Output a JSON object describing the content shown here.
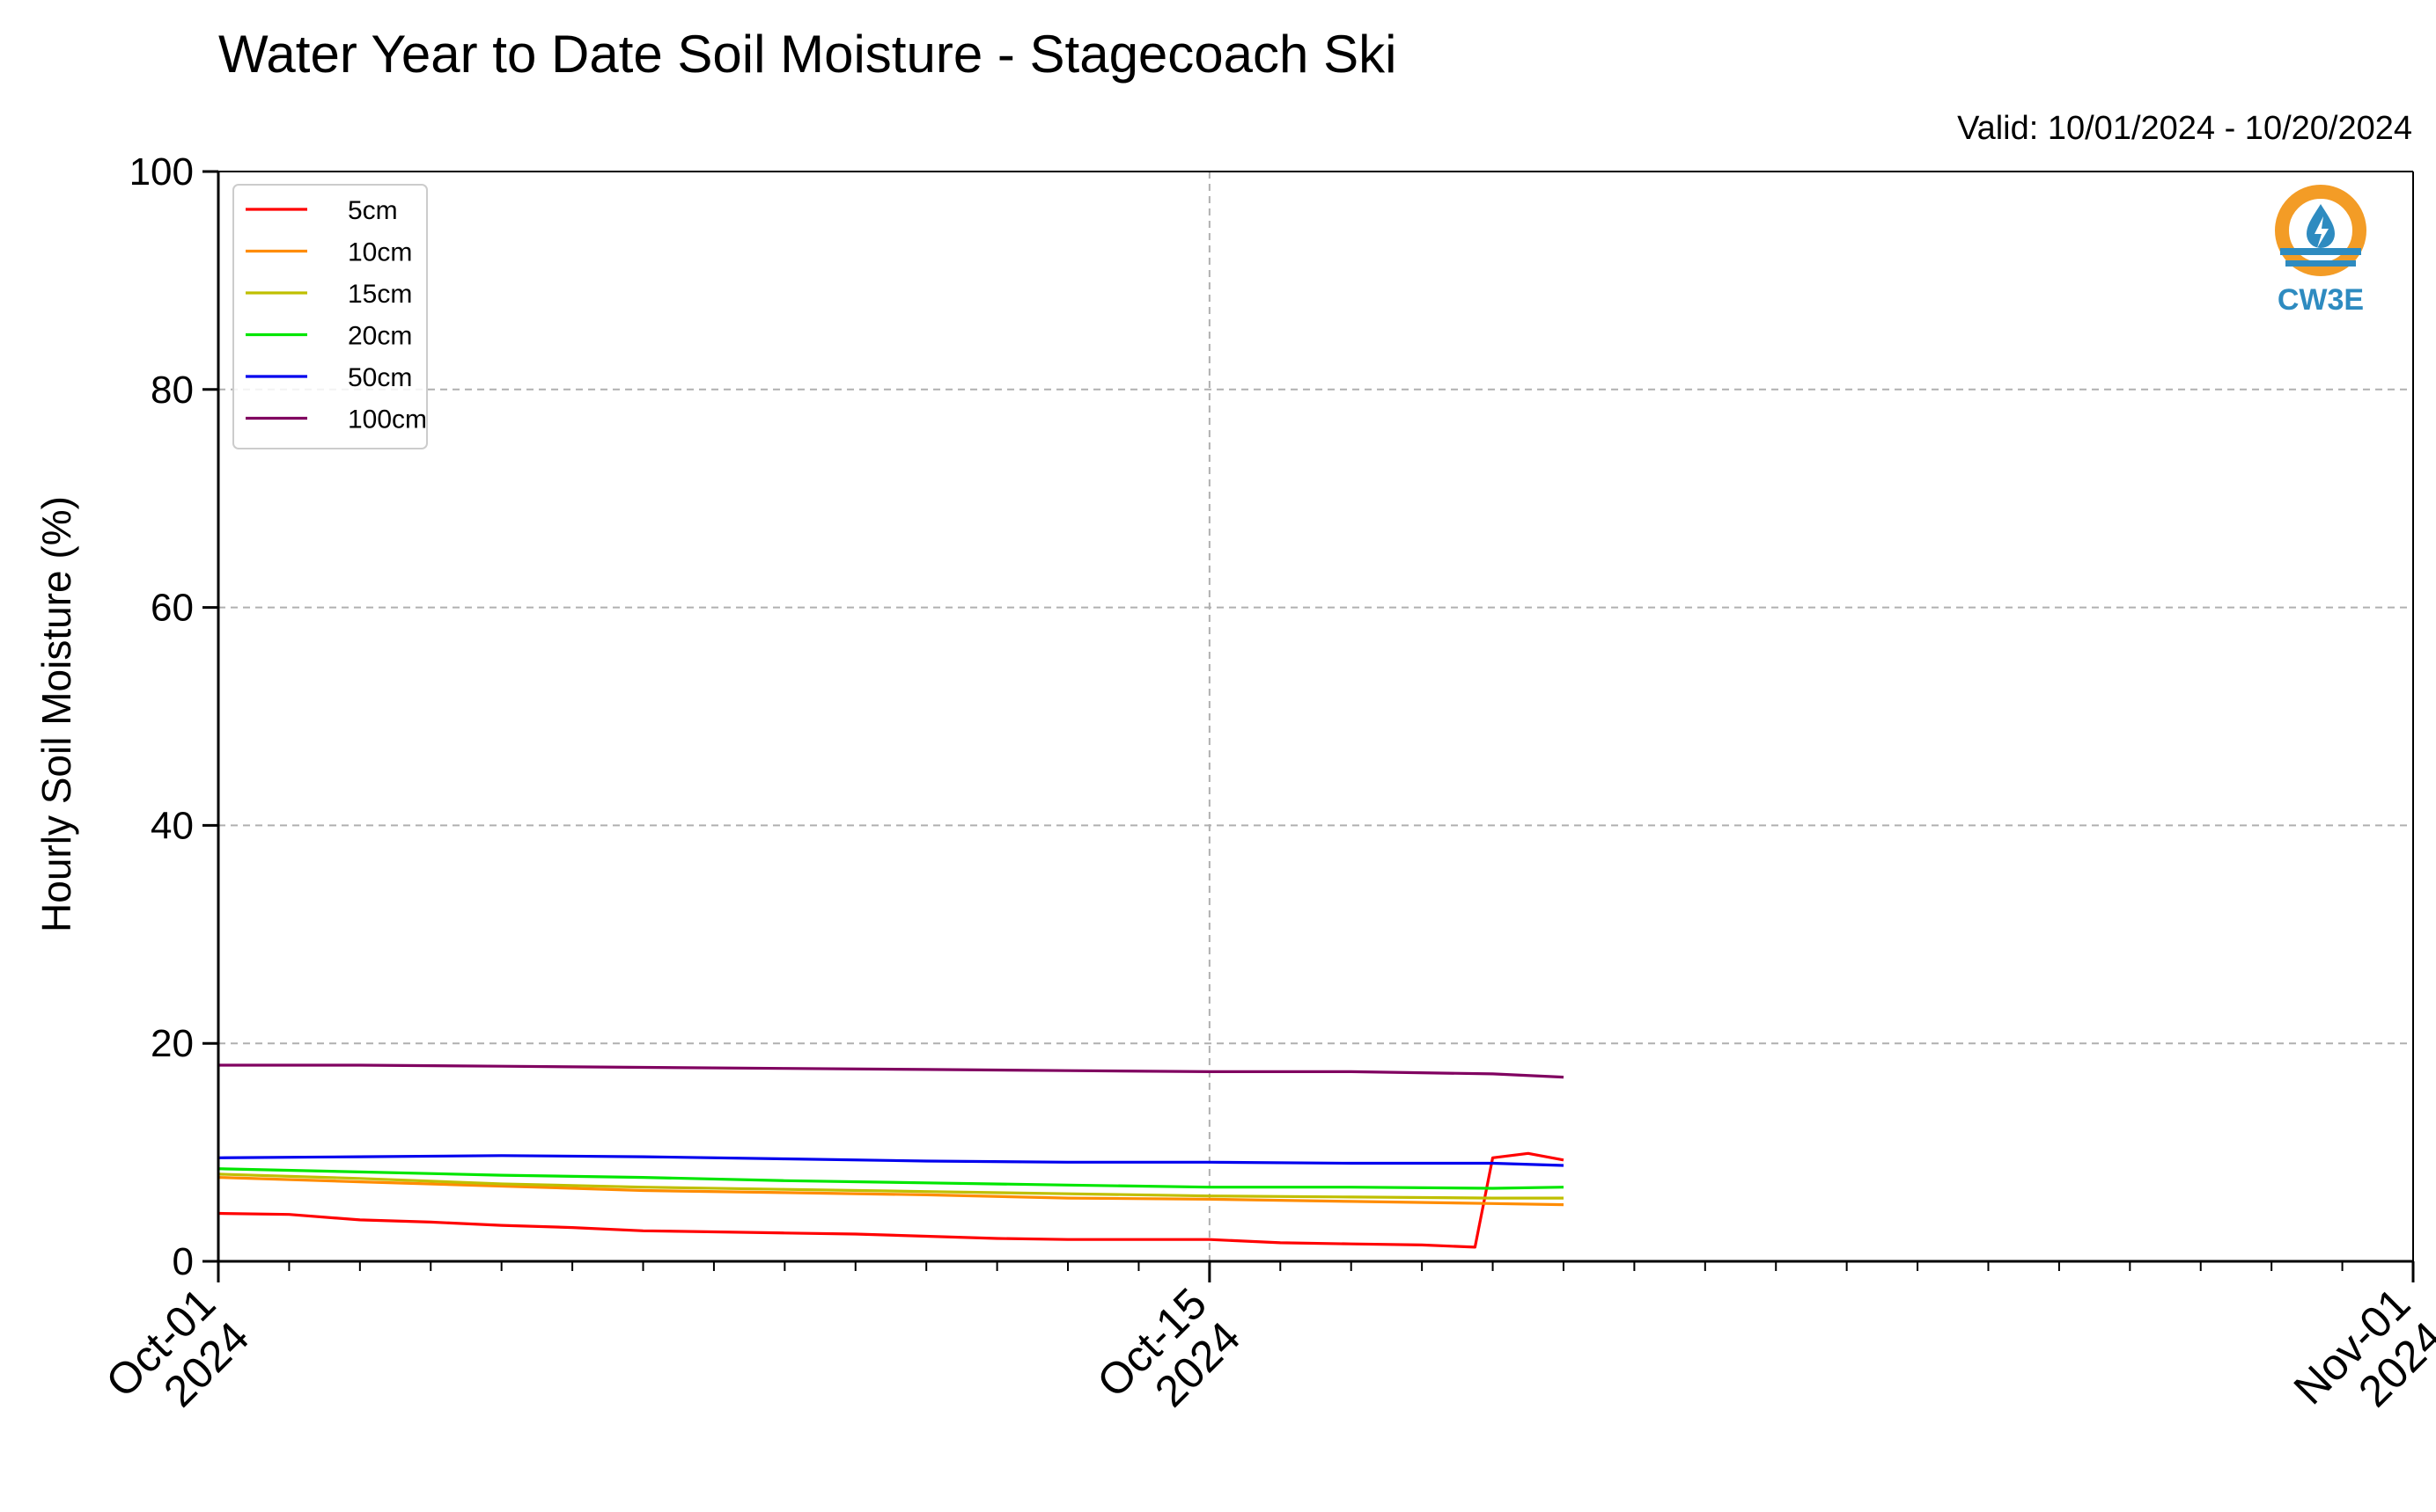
{
  "chart_data": {
    "type": "line",
    "title": "Water Year to Date Soil Moisture - Stagecoach Ski",
    "subtitle": "Valid: 10/01/2024 - 10/20/2024",
    "xlabel": "",
    "ylabel": "Hourly Soil Moisture (%)",
    "xlim": [
      "2024-10-01",
      "2024-11-01"
    ],
    "ylim": [
      0,
      100
    ],
    "y_ticks": [
      0,
      20,
      40,
      60,
      80,
      100
    ],
    "x_tick_labels": [
      {
        "date": "2024-10-01",
        "line1": "Oct-01",
        "line2": "2024"
      },
      {
        "date": "2024-10-15",
        "line1": "Oct-15",
        "line2": "2024"
      },
      {
        "date": "2024-11-01",
        "line1": "Nov-01",
        "line2": "2024"
      }
    ],
    "grid": true,
    "legend_position": "top-left",
    "series": [
      {
        "name": "5cm",
        "color": "#ff0000",
        "x": [
          "2024-10-01",
          "2024-10-02",
          "2024-10-03",
          "2024-10-04",
          "2024-10-05",
          "2024-10-06",
          "2024-10-07",
          "2024-10-08",
          "2024-10-09",
          "2024-10-10",
          "2024-10-11",
          "2024-10-12",
          "2024-10-13",
          "2024-10-14",
          "2024-10-15",
          "2024-10-16",
          "2024-10-17",
          "2024-10-18",
          "2024-10-18T18:00",
          "2024-10-19",
          "2024-10-19T12:00",
          "2024-10-20"
        ],
        "y": [
          4.4,
          4.3,
          3.8,
          3.6,
          3.3,
          3.1,
          2.8,
          2.7,
          2.6,
          2.5,
          2.3,
          2.1,
          2.0,
          2.0,
          2.0,
          1.7,
          1.6,
          1.5,
          1.3,
          9.5,
          9.9,
          9.3
        ]
      },
      {
        "name": "10cm",
        "color": "#ff8c00",
        "x": [
          "2024-10-01",
          "2024-10-03",
          "2024-10-05",
          "2024-10-07",
          "2024-10-09",
          "2024-10-11",
          "2024-10-13",
          "2024-10-15",
          "2024-10-17",
          "2024-10-19",
          "2024-10-20"
        ],
        "y": [
          7.7,
          7.3,
          6.9,
          6.5,
          6.3,
          6.1,
          5.8,
          5.7,
          5.5,
          5.3,
          5.2
        ]
      },
      {
        "name": "15cm",
        "color": "#bfbf00",
        "x": [
          "2024-10-01",
          "2024-10-03",
          "2024-10-05",
          "2024-10-07",
          "2024-10-09",
          "2024-10-11",
          "2024-10-13",
          "2024-10-15",
          "2024-10-17",
          "2024-10-19",
          "2024-10-20"
        ],
        "y": [
          8.0,
          7.6,
          7.1,
          6.8,
          6.6,
          6.4,
          6.2,
          6.0,
          5.9,
          5.8,
          5.8
        ]
      },
      {
        "name": "20cm",
        "color": "#00e600",
        "x": [
          "2024-10-01",
          "2024-10-03",
          "2024-10-05",
          "2024-10-07",
          "2024-10-09",
          "2024-10-11",
          "2024-10-13",
          "2024-10-15",
          "2024-10-17",
          "2024-10-19",
          "2024-10-20"
        ],
        "y": [
          8.5,
          8.2,
          7.9,
          7.7,
          7.4,
          7.2,
          7.0,
          6.8,
          6.8,
          6.7,
          6.8
        ]
      },
      {
        "name": "50cm",
        "color": "#0000ee",
        "x": [
          "2024-10-01",
          "2024-10-03",
          "2024-10-05",
          "2024-10-07",
          "2024-10-09",
          "2024-10-11",
          "2024-10-13",
          "2024-10-15",
          "2024-10-17",
          "2024-10-19",
          "2024-10-20"
        ],
        "y": [
          9.5,
          9.6,
          9.7,
          9.6,
          9.4,
          9.2,
          9.1,
          9.1,
          9.0,
          9.0,
          8.8
        ]
      },
      {
        "name": "100cm",
        "color": "#800060",
        "x": [
          "2024-10-01",
          "2024-10-03",
          "2024-10-05",
          "2024-10-07",
          "2024-10-09",
          "2024-10-11",
          "2024-10-13",
          "2024-10-15",
          "2024-10-17",
          "2024-10-19",
          "2024-10-20"
        ],
        "y": [
          18.0,
          18.0,
          17.9,
          17.8,
          17.7,
          17.6,
          17.5,
          17.4,
          17.4,
          17.2,
          16.9
        ]
      }
    ]
  },
  "logo": {
    "text": "CW3E",
    "ring_color": "#f39c26",
    "accent_color": "#2e8bc0"
  }
}
